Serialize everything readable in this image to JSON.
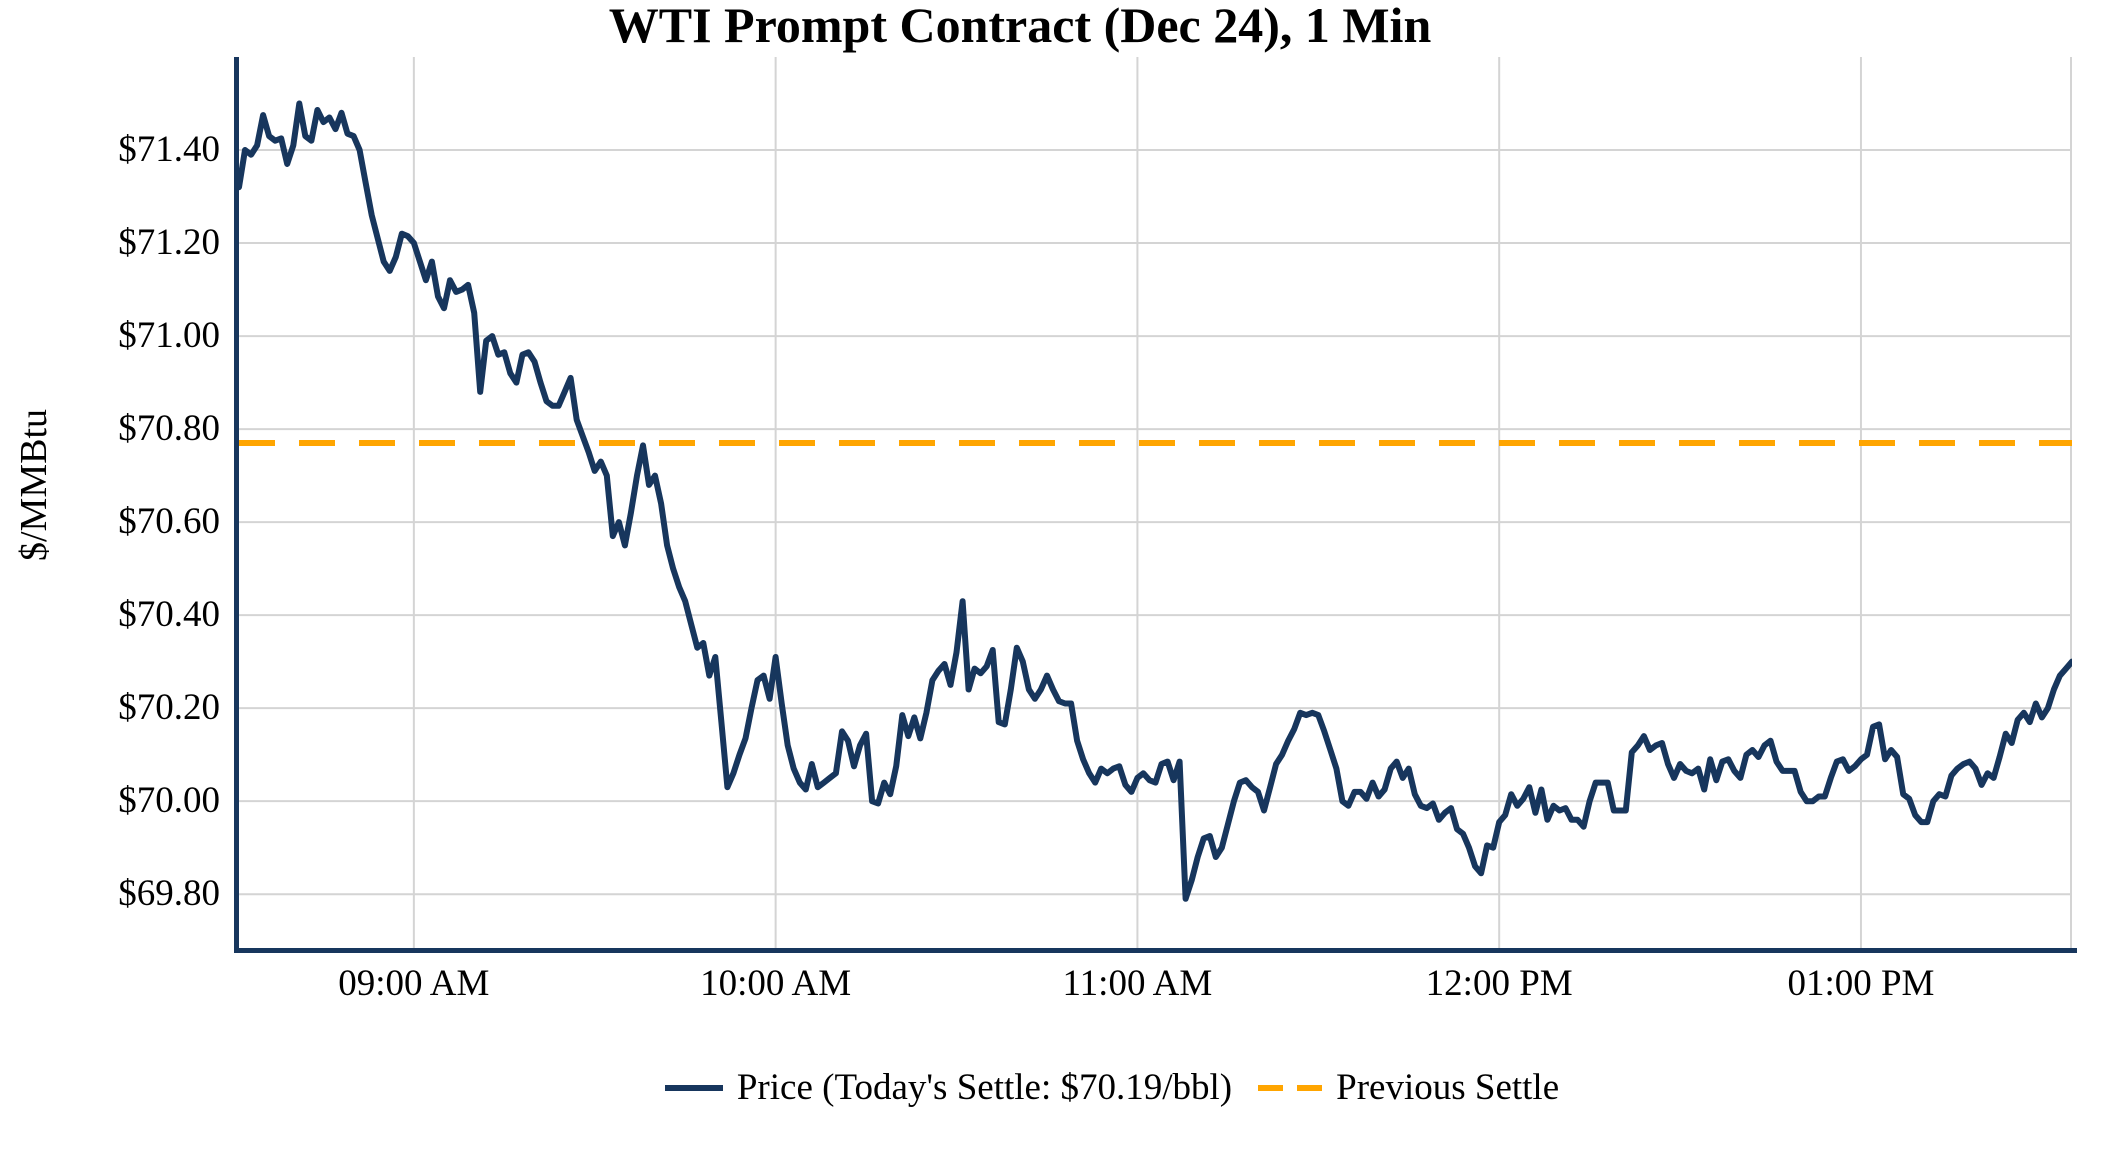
{
  "chart_data": {
    "type": "line",
    "title": "WTI Prompt Contract (Dec 24), 1 Min",
    "ylabel": "$/MMBtu",
    "xlabel": "",
    "grid": true,
    "legend_position": "bottom-center",
    "ylim": [
      69.68,
      71.6
    ],
    "time_start": "08:31 AM",
    "time_end": "01:35 PM",
    "interval_minutes": 1,
    "y_ticks": [
      {
        "label": "$71.40",
        "value": 71.4
      },
      {
        "label": "$71.20",
        "value": 71.2
      },
      {
        "label": "$71.00",
        "value": 71.0
      },
      {
        "label": "$70.80",
        "value": 70.8
      },
      {
        "label": "$70.60",
        "value": 70.6
      },
      {
        "label": "$70.40",
        "value": 70.4
      },
      {
        "label": "$70.20",
        "value": 70.2
      },
      {
        "label": "$70.00",
        "value": 70.0
      },
      {
        "label": "$69.80",
        "value": 69.8
      }
    ],
    "x_ticks": [
      {
        "label": "09:00 AM",
        "index": 29
      },
      {
        "label": "10:00 AM",
        "index": 89
      },
      {
        "label": "11:00 AM",
        "index": 149
      },
      {
        "label": "12:00 PM",
        "index": 209
      },
      {
        "label": "01:00 PM",
        "index": 269
      }
    ],
    "previous_settle": 70.77,
    "todays_settle_label": "$70.19/bbl",
    "colors": {
      "price": "#17365d",
      "previous_settle": "#FFA500",
      "grid": "#d4d4d4",
      "axis": "#17365d",
      "text": "#000000"
    },
    "series": [
      {
        "name": "Price (Today's Settle: $70.19/bbl)",
        "style": "solid",
        "color": "#17365d",
        "values": [
          71.32,
          71.4,
          71.39,
          71.41,
          71.475,
          71.43,
          71.42,
          71.425,
          71.37,
          71.41,
          71.5,
          71.43,
          71.42,
          71.486,
          71.46,
          71.47,
          71.445,
          71.48,
          71.435,
          71.43,
          71.4,
          71.33,
          71.26,
          71.21,
          71.16,
          71.14,
          71.17,
          71.22,
          71.215,
          71.2,
          71.16,
          71.12,
          71.16,
          71.085,
          71.06,
          71.12,
          71.095,
          71.1,
          71.11,
          71.05,
          70.88,
          70.99,
          71.0,
          70.96,
          70.965,
          70.92,
          70.9,
          70.96,
          70.965,
          70.945,
          70.9,
          70.86,
          70.85,
          70.85,
          70.88,
          70.91,
          70.82,
          70.785,
          70.75,
          70.71,
          70.73,
          70.7,
          70.57,
          70.6,
          70.55,
          70.62,
          70.7,
          70.765,
          70.68,
          70.7,
          70.64,
          70.55,
          70.5,
          70.46,
          70.43,
          70.38,
          70.33,
          70.34,
          70.27,
          70.31,
          70.17,
          70.03,
          70.06,
          70.1,
          70.135,
          70.2,
          70.26,
          70.27,
          70.22,
          70.31,
          70.21,
          70.12,
          70.07,
          70.04,
          70.025,
          70.08,
          70.03,
          70.04,
          70.05,
          70.06,
          70.15,
          70.13,
          70.075,
          70.12,
          70.145,
          70.0,
          69.995,
          70.04,
          70.015,
          70.075,
          70.185,
          70.14,
          70.18,
          70.135,
          70.19,
          70.26,
          70.28,
          70.295,
          70.25,
          70.32,
          70.43,
          70.24,
          70.285,
          70.275,
          70.29,
          70.325,
          70.17,
          70.165,
          70.24,
          70.33,
          70.3,
          70.24,
          70.22,
          70.24,
          70.27,
          70.24,
          70.215,
          70.21,
          70.21,
          70.13,
          70.09,
          70.06,
          70.04,
          70.07,
          70.06,
          70.07,
          70.075,
          70.035,
          70.02,
          70.05,
          70.06,
          70.045,
          70.04,
          70.08,
          70.085,
          70.045,
          70.085,
          69.79,
          69.83,
          69.88,
          69.92,
          69.925,
          69.88,
          69.9,
          69.95,
          70.0,
          70.04,
          70.045,
          70.03,
          70.02,
          69.98,
          70.03,
          70.08,
          70.1,
          70.13,
          70.155,
          70.19,
          70.185,
          70.19,
          70.185,
          70.15,
          70.11,
          70.07,
          70.0,
          69.99,
          70.02,
          70.02,
          70.005,
          70.04,
          70.01,
          70.025,
          70.07,
          70.085,
          70.05,
          70.07,
          70.015,
          69.99,
          69.985,
          69.995,
          69.96,
          69.975,
          69.985,
          69.94,
          69.93,
          69.9,
          69.86,
          69.845,
          69.905,
          69.9,
          69.955,
          69.97,
          70.015,
          69.99,
          70.005,
          70.03,
          69.975,
          70.025,
          69.96,
          69.99,
          69.98,
          69.985,
          69.96,
          69.96,
          69.945,
          70.0,
          70.04,
          70.04,
          70.04,
          69.98,
          69.98,
          69.98,
          70.105,
          70.12,
          70.14,
          70.11,
          70.12,
          70.125,
          70.08,
          70.05,
          70.08,
          70.065,
          70.06,
          70.07,
          70.025,
          70.09,
          70.045,
          70.085,
          70.09,
          70.065,
          70.05,
          70.1,
          70.11,
          70.095,
          70.12,
          70.13,
          70.085,
          70.065,
          70.065,
          70.065,
          70.02,
          70.0,
          70.0,
          70.01,
          70.01,
          70.05,
          70.085,
          70.09,
          70.065,
          70.075,
          70.09,
          70.1,
          70.16,
          70.165,
          70.09,
          70.11,
          70.095,
          70.015,
          70.005,
          69.97,
          69.955,
          69.955,
          70.0,
          70.015,
          70.01,
          70.055,
          70.07,
          70.08,
          70.085,
          70.07,
          70.035,
          70.06,
          70.05,
          70.095,
          70.145,
          70.125,
          70.175,
          70.19,
          70.17,
          70.21,
          70.18,
          70.2,
          70.24,
          70.27,
          70.285,
          70.3
        ]
      },
      {
        "name": "Previous Settle",
        "style": "dashed",
        "color": "#FFA500",
        "value": 70.77
      }
    ]
  },
  "legend": {
    "price_label": "Price (Today's Settle: $70.19/bbl)",
    "previous_label": "Previous Settle"
  }
}
